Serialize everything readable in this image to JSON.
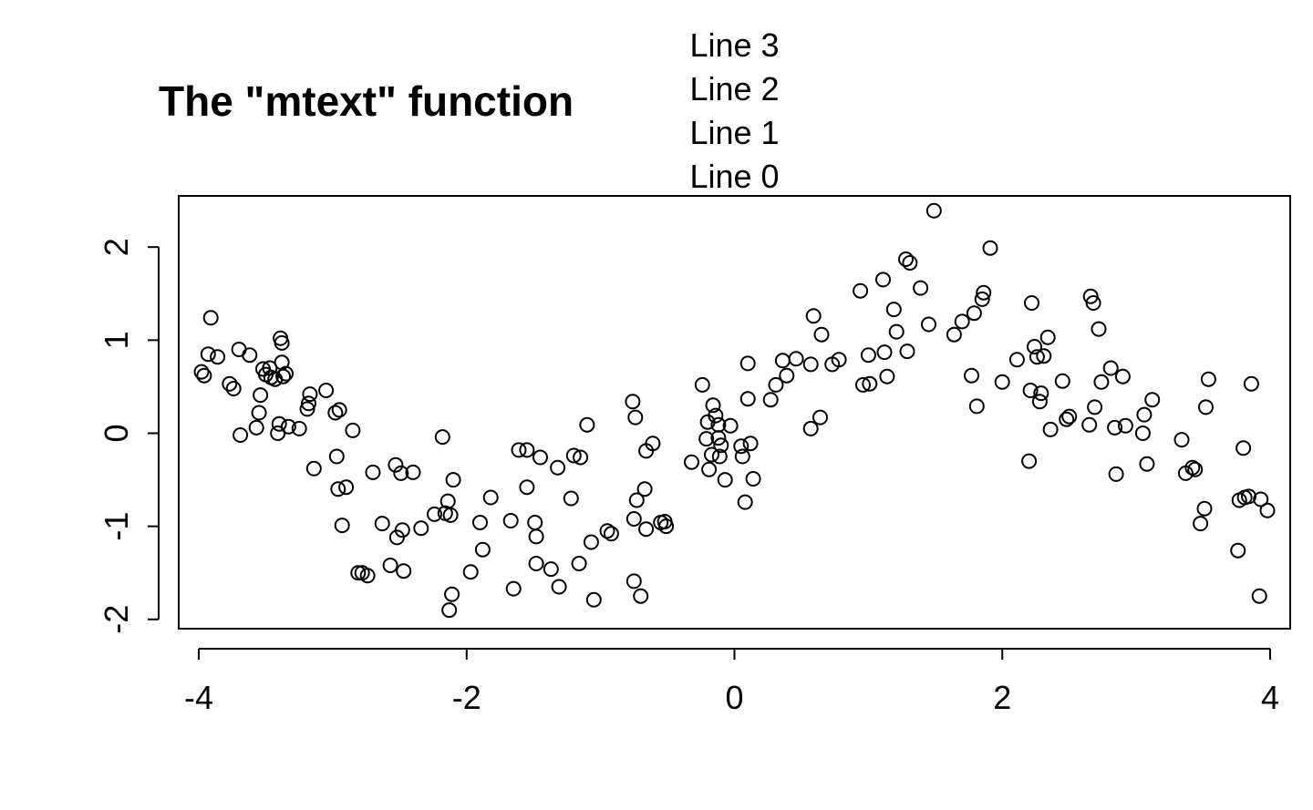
{
  "chart_data": {
    "type": "scatter",
    "title": "The \"mtext\" function",
    "xlabel": "",
    "ylabel": "",
    "xlim": [
      -4.15,
      4.15
    ],
    "ylim": [
      -2.1,
      2.55
    ],
    "x_ticks": [
      -4,
      -2,
      0,
      2,
      4
    ],
    "y_ticks": [
      -2,
      -1,
      0,
      1,
      2
    ],
    "x_tick_labels": [
      "-4",
      "-2",
      "0",
      "2",
      "4"
    ],
    "y_tick_labels": [
      "-2",
      "-1",
      "0",
      "1",
      "2"
    ],
    "grid": false,
    "mtext_lines": [
      "Line 3",
      "Line 2",
      "Line 1",
      "Line 0"
    ],
    "points": [
      [
        -3.98,
        0.66
      ],
      [
        -3.96,
        0.62
      ],
      [
        -3.93,
        0.85
      ],
      [
        -3.91,
        1.24
      ],
      [
        -3.86,
        0.82
      ],
      [
        -3.77,
        0.53
      ],
      [
        -3.74,
        0.48
      ],
      [
        -3.7,
        0.9
      ],
      [
        -3.69,
        -0.02
      ],
      [
        -3.62,
        0.84
      ],
      [
        -3.57,
        0.06
      ],
      [
        -3.55,
        0.22
      ],
      [
        -3.54,
        0.41
      ],
      [
        -3.52,
        0.69
      ],
      [
        -3.5,
        0.63
      ],
      [
        -3.47,
        0.7
      ],
      [
        -3.46,
        0.6
      ],
      [
        -3.43,
        0.58
      ],
      [
        -3.41,
        0.0
      ],
      [
        -3.4,
        0.1
      ],
      [
        -3.39,
        1.02
      ],
      [
        -3.38,
        0.97
      ],
      [
        -3.38,
        0.76
      ],
      [
        -3.37,
        0.61
      ],
      [
        -3.35,
        0.64
      ],
      [
        -3.33,
        0.07
      ],
      [
        -3.25,
        0.05
      ],
      [
        -3.19,
        0.26
      ],
      [
        -3.18,
        0.32
      ],
      [
        -3.17,
        0.42
      ],
      [
        -3.14,
        -0.38
      ],
      [
        -3.05,
        0.46
      ],
      [
        -2.98,
        0.22
      ],
      [
        -2.97,
        -0.25
      ],
      [
        -2.96,
        -0.6
      ],
      [
        -2.95,
        0.25
      ],
      [
        -2.93,
        -0.99
      ],
      [
        -2.9,
        -0.58
      ],
      [
        -2.85,
        0.03
      ],
      [
        -2.81,
        -1.5
      ],
      [
        -2.78,
        -1.5
      ],
      [
        -2.74,
        -1.53
      ],
      [
        -2.7,
        -0.42
      ],
      [
        -2.63,
        -0.97
      ],
      [
        -2.57,
        -1.42
      ],
      [
        -2.53,
        -0.34
      ],
      [
        -2.52,
        -1.12
      ],
      [
        -2.49,
        -0.43
      ],
      [
        -2.48,
        -1.04
      ],
      [
        -2.47,
        -1.48
      ],
      [
        -2.4,
        -0.42
      ],
      [
        -2.34,
        -1.02
      ],
      [
        -2.24,
        -0.87
      ],
      [
        -2.18,
        -0.04
      ],
      [
        -2.16,
        -0.86
      ],
      [
        -2.14,
        -0.73
      ],
      [
        -2.13,
        -1.9
      ],
      [
        -2.12,
        -0.88
      ],
      [
        -2.11,
        -1.73
      ],
      [
        -2.1,
        -0.5
      ],
      [
        -1.97,
        -1.49
      ],
      [
        -1.9,
        -0.96
      ],
      [
        -1.88,
        -1.25
      ],
      [
        -1.82,
        -0.69
      ],
      [
        -1.67,
        -0.94
      ],
      [
        -1.65,
        -1.67
      ],
      [
        -1.61,
        -0.18
      ],
      [
        -1.55,
        -0.58
      ],
      [
        -1.55,
        -0.18
      ],
      [
        -1.49,
        -0.96
      ],
      [
        -1.48,
        -1.11
      ],
      [
        -1.48,
        -1.4
      ],
      [
        -1.45,
        -0.26
      ],
      [
        -1.37,
        -1.46
      ],
      [
        -1.32,
        -0.37
      ],
      [
        -1.31,
        -1.65
      ],
      [
        -1.22,
        -0.7
      ],
      [
        -1.2,
        -0.24
      ],
      [
        -1.16,
        -1.4
      ],
      [
        -1.15,
        -0.26
      ],
      [
        -1.1,
        0.09
      ],
      [
        -1.07,
        -1.17
      ],
      [
        -1.05,
        -1.79
      ],
      [
        -0.95,
        -1.05
      ],
      [
        -0.92,
        -1.08
      ],
      [
        -0.76,
        0.34
      ],
      [
        -0.75,
        -1.59
      ],
      [
        -0.75,
        -0.92
      ],
      [
        -0.74,
        0.17
      ],
      [
        -0.73,
        -0.72
      ],
      [
        -0.7,
        -1.75
      ],
      [
        -0.67,
        -0.6
      ],
      [
        -0.66,
        -0.19
      ],
      [
        -0.66,
        -1.03
      ],
      [
        -0.61,
        -0.11
      ],
      [
        -0.55,
        -0.96
      ],
      [
        -0.52,
        -0.95
      ],
      [
        -0.51,
        -1.0
      ],
      [
        -0.32,
        -0.31
      ],
      [
        -0.24,
        0.52
      ],
      [
        -0.21,
        -0.06
      ],
      [
        -0.2,
        0.12
      ],
      [
        -0.19,
        -0.39
      ],
      [
        -0.17,
        -0.23
      ],
      [
        -0.16,
        0.3
      ],
      [
        -0.14,
        0.19
      ],
      [
        -0.12,
        0.09
      ],
      [
        -0.12,
        -0.05
      ],
      [
        -0.11,
        -0.25
      ],
      [
        -0.1,
        -0.13
      ],
      [
        -0.07,
        -0.5
      ],
      [
        -0.03,
        0.08
      ],
      [
        0.05,
        -0.14
      ],
      [
        0.06,
        -0.25
      ],
      [
        0.08,
        -0.74
      ],
      [
        0.1,
        0.75
      ],
      [
        0.1,
        0.37
      ],
      [
        0.12,
        -0.11
      ],
      [
        0.14,
        -0.49
      ],
      [
        0.27,
        0.36
      ],
      [
        0.31,
        0.52
      ],
      [
        0.36,
        0.78
      ],
      [
        0.39,
        0.62
      ],
      [
        0.46,
        0.8
      ],
      [
        0.57,
        0.05
      ],
      [
        0.57,
        0.74
      ],
      [
        0.59,
        1.26
      ],
      [
        0.64,
        0.17
      ],
      [
        0.65,
        1.06
      ],
      [
        0.73,
        0.74
      ],
      [
        0.78,
        0.79
      ],
      [
        0.94,
        1.53
      ],
      [
        0.96,
        0.52
      ],
      [
        1.0,
        0.84
      ],
      [
        1.01,
        0.53
      ],
      [
        1.11,
        1.65
      ],
      [
        1.12,
        0.87
      ],
      [
        1.14,
        0.61
      ],
      [
        1.19,
        1.33
      ],
      [
        1.21,
        1.09
      ],
      [
        1.28,
        1.87
      ],
      [
        1.29,
        0.88
      ],
      [
        1.31,
        1.83
      ],
      [
        1.39,
        1.56
      ],
      [
        1.45,
        1.17
      ],
      [
        1.49,
        2.39
      ],
      [
        1.64,
        1.06
      ],
      [
        1.7,
        1.2
      ],
      [
        1.77,
        0.62
      ],
      [
        1.79,
        1.29
      ],
      [
        1.81,
        0.29
      ],
      [
        1.85,
        1.44
      ],
      [
        1.86,
        1.51
      ],
      [
        1.91,
        1.99
      ],
      [
        2.0,
        0.55
      ],
      [
        2.11,
        0.79
      ],
      [
        2.2,
        -0.3
      ],
      [
        2.21,
        0.46
      ],
      [
        2.22,
        1.4
      ],
      [
        2.24,
        0.93
      ],
      [
        2.26,
        0.82
      ],
      [
        2.28,
        0.34
      ],
      [
        2.29,
        0.43
      ],
      [
        2.31,
        0.83
      ],
      [
        2.34,
        1.03
      ],
      [
        2.36,
        0.04
      ],
      [
        2.45,
        0.56
      ],
      [
        2.48,
        0.15
      ],
      [
        2.5,
        0.18
      ],
      [
        2.65,
        0.09
      ],
      [
        2.66,
        1.47
      ],
      [
        2.68,
        1.4
      ],
      [
        2.69,
        0.28
      ],
      [
        2.72,
        1.12
      ],
      [
        2.74,
        0.55
      ],
      [
        2.81,
        0.7
      ],
      [
        2.84,
        0.06
      ],
      [
        2.85,
        -0.44
      ],
      [
        2.9,
        0.61
      ],
      [
        2.92,
        0.08
      ],
      [
        3.05,
        0.0
      ],
      [
        3.06,
        0.2
      ],
      [
        3.08,
        -0.33
      ],
      [
        3.12,
        0.36
      ],
      [
        3.34,
        -0.07
      ],
      [
        3.37,
        -0.43
      ],
      [
        3.42,
        -0.37
      ],
      [
        3.44,
        -0.39
      ],
      [
        3.48,
        -0.97
      ],
      [
        3.51,
        -0.81
      ],
      [
        3.52,
        0.28
      ],
      [
        3.54,
        0.58
      ],
      [
        3.76,
        -1.26
      ],
      [
        3.77,
        -0.72
      ],
      [
        3.8,
        -0.16
      ],
      [
        3.81,
        -0.69
      ],
      [
        3.84,
        -0.68
      ],
      [
        3.86,
        0.53
      ],
      [
        3.92,
        -1.75
      ],
      [
        3.93,
        -0.71
      ],
      [
        3.98,
        -0.83
      ]
    ]
  }
}
